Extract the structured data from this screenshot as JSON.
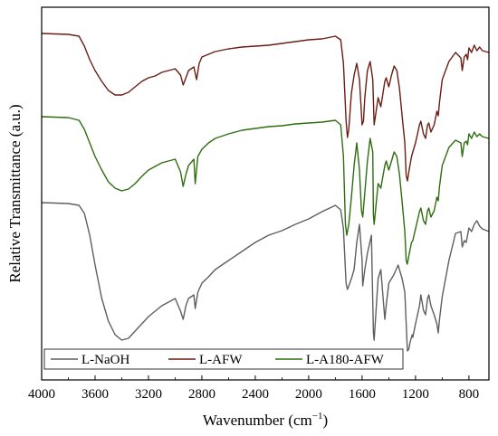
{
  "chart_data": {
    "type": "line",
    "xlabel": "Wavenumber (cm",
    "xlabel_sup": "−1",
    "xlabel_close": ")",
    "ylabel": "Relative Transmittance (a.u.)",
    "xlim": [
      4000,
      650
    ],
    "x_reversed": true,
    "xticks": [
      4000,
      3600,
      3200,
      2800,
      2400,
      2000,
      1600,
      1200,
      800
    ],
    "grid": false,
    "legend_position": "bottom-left",
    "series": [
      {
        "name": "L-NaOH",
        "color": "#5f5f5f",
        "points": [
          [
            4000,
            216
          ],
          [
            3800,
            217
          ],
          [
            3720,
            219
          ],
          [
            3680,
            228
          ],
          [
            3640,
            252
          ],
          [
            3600,
            285
          ],
          [
            3550,
            322
          ],
          [
            3500,
            347
          ],
          [
            3450,
            362
          ],
          [
            3400,
            368
          ],
          [
            3350,
            366
          ],
          [
            3300,
            358
          ],
          [
            3250,
            350
          ],
          [
            3200,
            342
          ],
          [
            3150,
            336
          ],
          [
            3100,
            330
          ],
          [
            3050,
            326
          ],
          [
            3000,
            322
          ],
          [
            2960,
            336
          ],
          [
            2940,
            345
          ],
          [
            2920,
            330
          ],
          [
            2900,
            322
          ],
          [
            2860,
            318
          ],
          [
            2850,
            333
          ],
          [
            2830,
            315
          ],
          [
            2800,
            305
          ],
          [
            2750,
            298
          ],
          [
            2700,
            290
          ],
          [
            2600,
            280
          ],
          [
            2500,
            270
          ],
          [
            2400,
            260
          ],
          [
            2300,
            252
          ],
          [
            2200,
            247
          ],
          [
            2100,
            240
          ],
          [
            2000,
            234
          ],
          [
            1900,
            226
          ],
          [
            1800,
            219
          ],
          [
            1760,
            224
          ],
          [
            1740,
            245
          ],
          [
            1720,
            305
          ],
          [
            1710,
            312
          ],
          [
            1700,
            308
          ],
          [
            1680,
            300
          ],
          [
            1660,
            290
          ],
          [
            1640,
            260
          ],
          [
            1620,
            240
          ],
          [
            1600,
            280
          ],
          [
            1595,
            308
          ],
          [
            1580,
            290
          ],
          [
            1560,
            272
          ],
          [
            1530,
            252
          ],
          [
            1515,
            360
          ],
          [
            1510,
            368
          ],
          [
            1500,
            345
          ],
          [
            1480,
            300
          ],
          [
            1460,
            290
          ],
          [
            1430,
            345
          ],
          [
            1420,
            330
          ],
          [
            1400,
            305
          ],
          [
            1380,
            300
          ],
          [
            1360,
            295
          ],
          [
            1330,
            285
          ],
          [
            1300,
            300
          ],
          [
            1280,
            315
          ],
          [
            1265,
            366
          ],
          [
            1260,
            380
          ],
          [
            1250,
            378
          ],
          [
            1240,
            370
          ],
          [
            1225,
            362
          ],
          [
            1220,
            365
          ],
          [
            1200,
            350
          ],
          [
            1170,
            330
          ],
          [
            1160,
            318
          ],
          [
            1140,
            335
          ],
          [
            1125,
            340
          ],
          [
            1110,
            322
          ],
          [
            1100,
            318
          ],
          [
            1085,
            330
          ],
          [
            1060,
            340
          ],
          [
            1040,
            350
          ],
          [
            1030,
            360
          ],
          [
            1020,
            345
          ],
          [
            1000,
            320
          ],
          [
            950,
            280
          ],
          [
            900,
            250
          ],
          [
            860,
            248
          ],
          [
            850,
            265
          ],
          [
            835,
            258
          ],
          [
            820,
            260
          ],
          [
            810,
            252
          ],
          [
            800,
            244
          ],
          [
            780,
            248
          ],
          [
            760,
            240
          ],
          [
            740,
            236
          ],
          [
            720,
            242
          ],
          [
            700,
            245
          ],
          [
            650,
            248
          ]
        ]
      },
      {
        "name": "L-AFW",
        "color": "#6b1e14",
        "points": [
          [
            4000,
            29
          ],
          [
            3800,
            30
          ],
          [
            3720,
            32
          ],
          [
            3680,
            43
          ],
          [
            3640,
            58
          ],
          [
            3600,
            70
          ],
          [
            3550,
            82
          ],
          [
            3500,
            92
          ],
          [
            3450,
            97
          ],
          [
            3400,
            97
          ],
          [
            3350,
            94
          ],
          [
            3300,
            88
          ],
          [
            3250,
            82
          ],
          [
            3200,
            78
          ],
          [
            3150,
            76
          ],
          [
            3100,
            72
          ],
          [
            3050,
            70
          ],
          [
            3000,
            68
          ],
          [
            2960,
            75
          ],
          [
            2940,
            86
          ],
          [
            2920,
            78
          ],
          [
            2900,
            70
          ],
          [
            2860,
            66
          ],
          [
            2840,
            80
          ],
          [
            2820,
            62
          ],
          [
            2800,
            55
          ],
          [
            2750,
            52
          ],
          [
            2700,
            49
          ],
          [
            2600,
            46
          ],
          [
            2500,
            44
          ],
          [
            2400,
            43
          ],
          [
            2300,
            42
          ],
          [
            2200,
            40
          ],
          [
            2100,
            38
          ],
          [
            2000,
            36
          ],
          [
            1900,
            35
          ],
          [
            1800,
            32
          ],
          [
            1760,
            36
          ],
          [
            1740,
            62
          ],
          [
            1720,
            125
          ],
          [
            1710,
            144
          ],
          [
            1700,
            135
          ],
          [
            1680,
            95
          ],
          [
            1660,
            75
          ],
          [
            1640,
            62
          ],
          [
            1620,
            80
          ],
          [
            1600,
            130
          ],
          [
            1590,
            126
          ],
          [
            1580,
            100
          ],
          [
            1560,
            70
          ],
          [
            1540,
            60
          ],
          [
            1520,
            80
          ],
          [
            1510,
            130
          ],
          [
            1500,
            120
          ],
          [
            1480,
            100
          ],
          [
            1460,
            110
          ],
          [
            1430,
            82
          ],
          [
            1420,
            78
          ],
          [
            1400,
            88
          ],
          [
            1380,
            75
          ],
          [
            1360,
            65
          ],
          [
            1340,
            70
          ],
          [
            1320,
            90
          ],
          [
            1300,
            120
          ],
          [
            1280,
            150
          ],
          [
            1270,
            186
          ],
          [
            1260,
            192
          ],
          [
            1250,
            182
          ],
          [
            1230,
            165
          ],
          [
            1220,
            160
          ],
          [
            1200,
            150
          ],
          [
            1170,
            130
          ],
          [
            1160,
            126
          ],
          [
            1140,
            140
          ],
          [
            1125,
            145
          ],
          [
            1110,
            130
          ],
          [
            1100,
            128
          ],
          [
            1085,
            138
          ],
          [
            1060,
            130
          ],
          [
            1040,
            115
          ],
          [
            1030,
            120
          ],
          [
            1020,
            105
          ],
          [
            1000,
            80
          ],
          [
            950,
            60
          ],
          [
            900,
            50
          ],
          [
            860,
            56
          ],
          [
            850,
            70
          ],
          [
            835,
            55
          ],
          [
            820,
            52
          ],
          [
            810,
            58
          ],
          [
            800,
            45
          ],
          [
            780,
            50
          ],
          [
            760,
            42
          ],
          [
            740,
            48
          ],
          [
            720,
            44
          ],
          [
            700,
            48
          ],
          [
            650,
            50
          ]
        ]
      },
      {
        "name": "L-A180-AFW",
        "color": "#2e6e10",
        "points": [
          [
            4000,
            121
          ],
          [
            3800,
            122
          ],
          [
            3720,
            125
          ],
          [
            3680,
            135
          ],
          [
            3640,
            150
          ],
          [
            3600,
            165
          ],
          [
            3550,
            180
          ],
          [
            3500,
            193
          ],
          [
            3450,
            200
          ],
          [
            3400,
            203
          ],
          [
            3350,
            201
          ],
          [
            3300,
            195
          ],
          [
            3250,
            187
          ],
          [
            3200,
            180
          ],
          [
            3150,
            176
          ],
          [
            3100,
            172
          ],
          [
            3050,
            170
          ],
          [
            3000,
            168
          ],
          [
            2960,
            182
          ],
          [
            2940,
            198
          ],
          [
            2920,
            185
          ],
          [
            2900,
            175
          ],
          [
            2860,
            168
          ],
          [
            2850,
            195
          ],
          [
            2830,
            165
          ],
          [
            2800,
            157
          ],
          [
            2750,
            150
          ],
          [
            2700,
            145
          ],
          [
            2600,
            140
          ],
          [
            2500,
            136
          ],
          [
            2400,
            134
          ],
          [
            2300,
            132
          ],
          [
            2200,
            131
          ],
          [
            2100,
            129
          ],
          [
            2000,
            128
          ],
          [
            1900,
            127
          ],
          [
            1800,
            125
          ],
          [
            1760,
            130
          ],
          [
            1740,
            165
          ],
          [
            1725,
            240
          ],
          [
            1715,
            252
          ],
          [
            1700,
            240
          ],
          [
            1680,
            210
          ],
          [
            1660,
            175
          ],
          [
            1640,
            150
          ],
          [
            1620,
            180
          ],
          [
            1605,
            225
          ],
          [
            1595,
            232
          ],
          [
            1580,
            205
          ],
          [
            1560,
            170
          ],
          [
            1540,
            145
          ],
          [
            1520,
            160
          ],
          [
            1515,
            230
          ],
          [
            1510,
            240
          ],
          [
            1500,
            225
          ],
          [
            1480,
            195
          ],
          [
            1460,
            200
          ],
          [
            1430,
            175
          ],
          [
            1420,
            170
          ],
          [
            1400,
            180
          ],
          [
            1380,
            170
          ],
          [
            1360,
            160
          ],
          [
            1340,
            165
          ],
          [
            1320,
            185
          ],
          [
            1300,
            215
          ],
          [
            1280,
            248
          ],
          [
            1270,
            280
          ],
          [
            1262,
            284
          ],
          [
            1250,
            275
          ],
          [
            1230,
            260
          ],
          [
            1220,
            258
          ],
          [
            1200,
            245
          ],
          [
            1170,
            226
          ],
          [
            1160,
            222
          ],
          [
            1140,
            236
          ],
          [
            1125,
            240
          ],
          [
            1110,
            225
          ],
          [
            1100,
            222
          ],
          [
            1085,
            232
          ],
          [
            1060,
            225
          ],
          [
            1040,
            210
          ],
          [
            1030,
            214
          ],
          [
            1020,
            198
          ],
          [
            1000,
            175
          ],
          [
            950,
            155
          ],
          [
            900,
            147
          ],
          [
            860,
            150
          ],
          [
            850,
            165
          ],
          [
            835,
            150
          ],
          [
            820,
            148
          ],
          [
            810,
            152
          ],
          [
            800,
            140
          ],
          [
            780,
            145
          ],
          [
            760,
            138
          ],
          [
            740,
            143
          ],
          [
            720,
            140
          ],
          [
            700,
            143
          ],
          [
            650,
            145
          ]
        ]
      }
    ]
  }
}
